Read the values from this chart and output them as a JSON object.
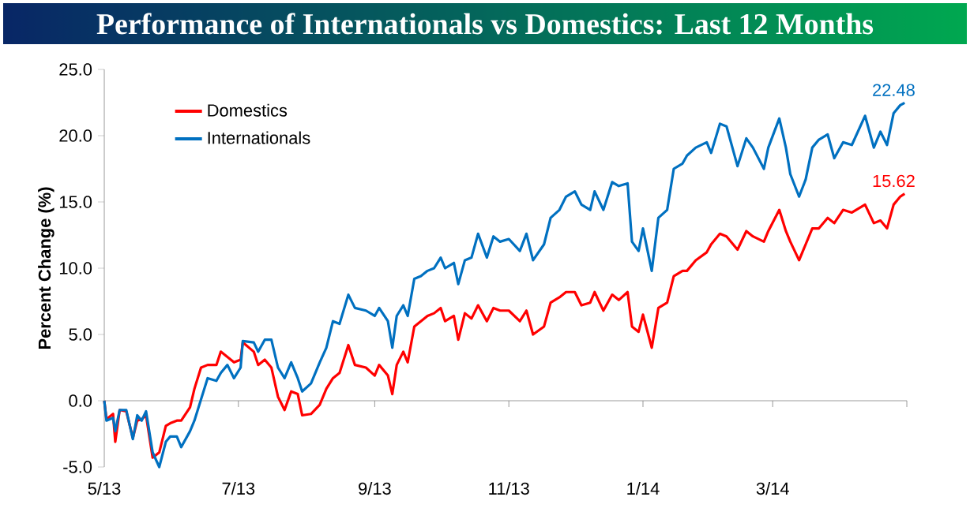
{
  "chart_data": {
    "type": "line",
    "title": "Performance of Internationals vs Domestics: Last 12 Months",
    "ylabel": "Percent Change (%)",
    "xlim": [
      "2013-05-01",
      "2014-05-01"
    ],
    "xticks": [
      {
        "value": "2013-05-01",
        "label": "5/13"
      },
      {
        "value": "2013-07-01",
        "label": "7/13"
      },
      {
        "value": "2013-09-01",
        "label": "9/13"
      },
      {
        "value": "2013-11-01",
        "label": "11/13"
      },
      {
        "value": "2014-01-01",
        "label": "1/14"
      },
      {
        "value": "2014-03-01",
        "label": "3/14"
      },
      {
        "value": "2014-05-01",
        "label": null
      }
    ],
    "ylim": [
      -5,
      25
    ],
    "yticks": [
      {
        "value": -5,
        "label": "-5.0"
      },
      {
        "value": 0,
        "label": "0.0"
      },
      {
        "value": 5,
        "label": "5.0"
      },
      {
        "value": 10,
        "label": "10.0"
      },
      {
        "value": 15,
        "label": "15.0"
      },
      {
        "value": 20,
        "label": "20.0"
      },
      {
        "value": 25,
        "label": "25.0"
      }
    ],
    "x": [
      "2013-05-01",
      "2013-05-02",
      "2013-05-05",
      "2013-05-06",
      "2013-05-08",
      "2013-05-11",
      "2013-05-14",
      "2013-05-16",
      "2013-05-18",
      "2013-05-20",
      "2013-05-23",
      "2013-05-26",
      "2013-05-29",
      "2013-05-31",
      "2013-06-03",
      "2013-06-05",
      "2013-06-09",
      "2013-06-11",
      "2013-06-14",
      "2013-06-17",
      "2013-06-21",
      "2013-06-23",
      "2013-06-26",
      "2013-06-29",
      "2013-07-02",
      "2013-07-03",
      "2013-07-08",
      "2013-07-10",
      "2013-07-13",
      "2013-07-16",
      "2013-07-19",
      "2013-07-22",
      "2013-07-25",
      "2013-07-28",
      "2013-07-30",
      "2013-08-03",
      "2013-08-07",
      "2013-08-10",
      "2013-08-13",
      "2013-08-16",
      "2013-08-20",
      "2013-08-23",
      "2013-08-28",
      "2013-09-01",
      "2013-09-03",
      "2013-09-07",
      "2013-09-09",
      "2013-09-11",
      "2013-09-14",
      "2013-09-16",
      "2013-09-19",
      "2013-09-22",
      "2013-09-25",
      "2013-09-28",
      "2013-10-01",
      "2013-10-03",
      "2013-10-07",
      "2013-10-09",
      "2013-10-12",
      "2013-10-15",
      "2013-10-18",
      "2013-10-22",
      "2013-10-25",
      "2013-10-28",
      "2013-11-01",
      "2013-11-06",
      "2013-11-09",
      "2013-11-12",
      "2013-11-17",
      "2013-11-20",
      "2013-11-24",
      "2013-11-27",
      "2013-12-01",
      "2013-12-04",
      "2013-12-08",
      "2013-12-10",
      "2013-12-14",
      "2013-12-18",
      "2013-12-21",
      "2013-12-25",
      "2013-12-27",
      "2013-12-30",
      "2014-01-01",
      "2014-01-05",
      "2014-01-08",
      "2014-01-12",
      "2014-01-15",
      "2014-01-19",
      "2014-01-21",
      "2014-01-25",
      "2014-01-30",
      "2014-02-01",
      "2014-02-05",
      "2014-02-08",
      "2014-02-13",
      "2014-02-17",
      "2014-02-20",
      "2014-02-25",
      "2014-02-27",
      "2014-03-04",
      "2014-03-07",
      "2014-03-09",
      "2014-03-13",
      "2014-03-16",
      "2014-03-19",
      "2014-03-22",
      "2014-03-26",
      "2014-03-29",
      "2014-04-02",
      "2014-04-06",
      "2014-04-12",
      "2014-04-16",
      "2014-04-19",
      "2014-04-22",
      "2014-04-25",
      "2014-04-28",
      "2014-04-30"
    ],
    "series": [
      {
        "name": "Domestics",
        "color": "#ff0000",
        "values": [
          0,
          -1.4,
          -1.0,
          -3.1,
          -0.7,
          -0.8,
          -2.8,
          -1.5,
          -1.4,
          -1.1,
          -4.3,
          -3.9,
          -1.9,
          -1.7,
          -1.5,
          -1.5,
          -0.5,
          0.9,
          2.5,
          2.7,
          2.7,
          3.7,
          3.3,
          2.9,
          3.1,
          4.4,
          3.7,
          2.7,
          3.1,
          2.5,
          0.3,
          -0.7,
          0.7,
          0.5,
          -1.1,
          -1.0,
          -0.3,
          0.9,
          1.7,
          2.1,
          4.2,
          2.7,
          2.5,
          1.9,
          2.7,
          1.9,
          0.5,
          2.7,
          3.7,
          2.9,
          5.6,
          6.0,
          6.4,
          6.6,
          7.0,
          6.0,
          6.4,
          4.6,
          6.6,
          6.2,
          7.2,
          6.0,
          7.0,
          6.8,
          6.8,
          6.0,
          6.8,
          5.0,
          5.6,
          7.4,
          7.8,
          8.2,
          8.2,
          7.2,
          7.4,
          8.2,
          6.8,
          8.0,
          7.6,
          8.2,
          5.6,
          5.2,
          6.5,
          4.0,
          7.0,
          7.4,
          9.4,
          9.8,
          9.8,
          10.6,
          11.2,
          11.8,
          12.6,
          12.4,
          11.4,
          12.8,
          12.4,
          12.0,
          12.8,
          14.4,
          12.8,
          12.0,
          10.6,
          11.8,
          13.0,
          13.0,
          13.8,
          13.4,
          14.4,
          14.2,
          14.8,
          13.4,
          13.6,
          13.0,
          14.8,
          15.4,
          15.62
        ]
      },
      {
        "name": "Internationals",
        "color": "#0070c0",
        "values": [
          0,
          -1.5,
          -1.3,
          -2.3,
          -0.7,
          -0.7,
          -2.9,
          -1.1,
          -1.5,
          -0.8,
          -3.9,
          -5.0,
          -3.1,
          -2.7,
          -2.7,
          -3.5,
          -2.3,
          -1.5,
          0.1,
          1.7,
          1.5,
          2.1,
          2.7,
          1.7,
          2.5,
          4.5,
          4.4,
          3.7,
          4.6,
          4.6,
          2.5,
          1.7,
          2.9,
          1.7,
          0.7,
          1.3,
          2.9,
          4.0,
          6.0,
          5.8,
          8.0,
          7.0,
          6.8,
          6.4,
          7.0,
          6.0,
          4.0,
          6.4,
          7.2,
          6.4,
          9.2,
          9.4,
          9.8,
          10.0,
          10.8,
          10.0,
          10.4,
          8.8,
          10.6,
          10.8,
          12.6,
          10.8,
          12.4,
          12.0,
          12.2,
          11.3,
          12.6,
          10.6,
          11.8,
          13.8,
          14.4,
          15.4,
          15.8,
          14.8,
          14.4,
          15.8,
          14.4,
          16.5,
          16.2,
          16.4,
          12.0,
          11.3,
          13.0,
          9.8,
          13.8,
          14.4,
          17.5,
          17.9,
          18.5,
          19.1,
          19.5,
          18.7,
          20.9,
          20.7,
          17.7,
          19.8,
          19.1,
          17.5,
          19.1,
          21.3,
          19.1,
          17.1,
          15.4,
          16.7,
          19.1,
          19.7,
          20.1,
          18.3,
          19.5,
          19.3,
          21.5,
          19.1,
          20.3,
          19.3,
          21.7,
          22.3,
          22.48
        ]
      }
    ],
    "annotations": [
      {
        "text": "22.48",
        "x": "2014-04-30",
        "y": 22.48
      },
      {
        "text": "15.62",
        "x": "2014-04-30",
        "y": 15.62
      }
    ],
    "legend": "top left",
    "marker": "none"
  }
}
